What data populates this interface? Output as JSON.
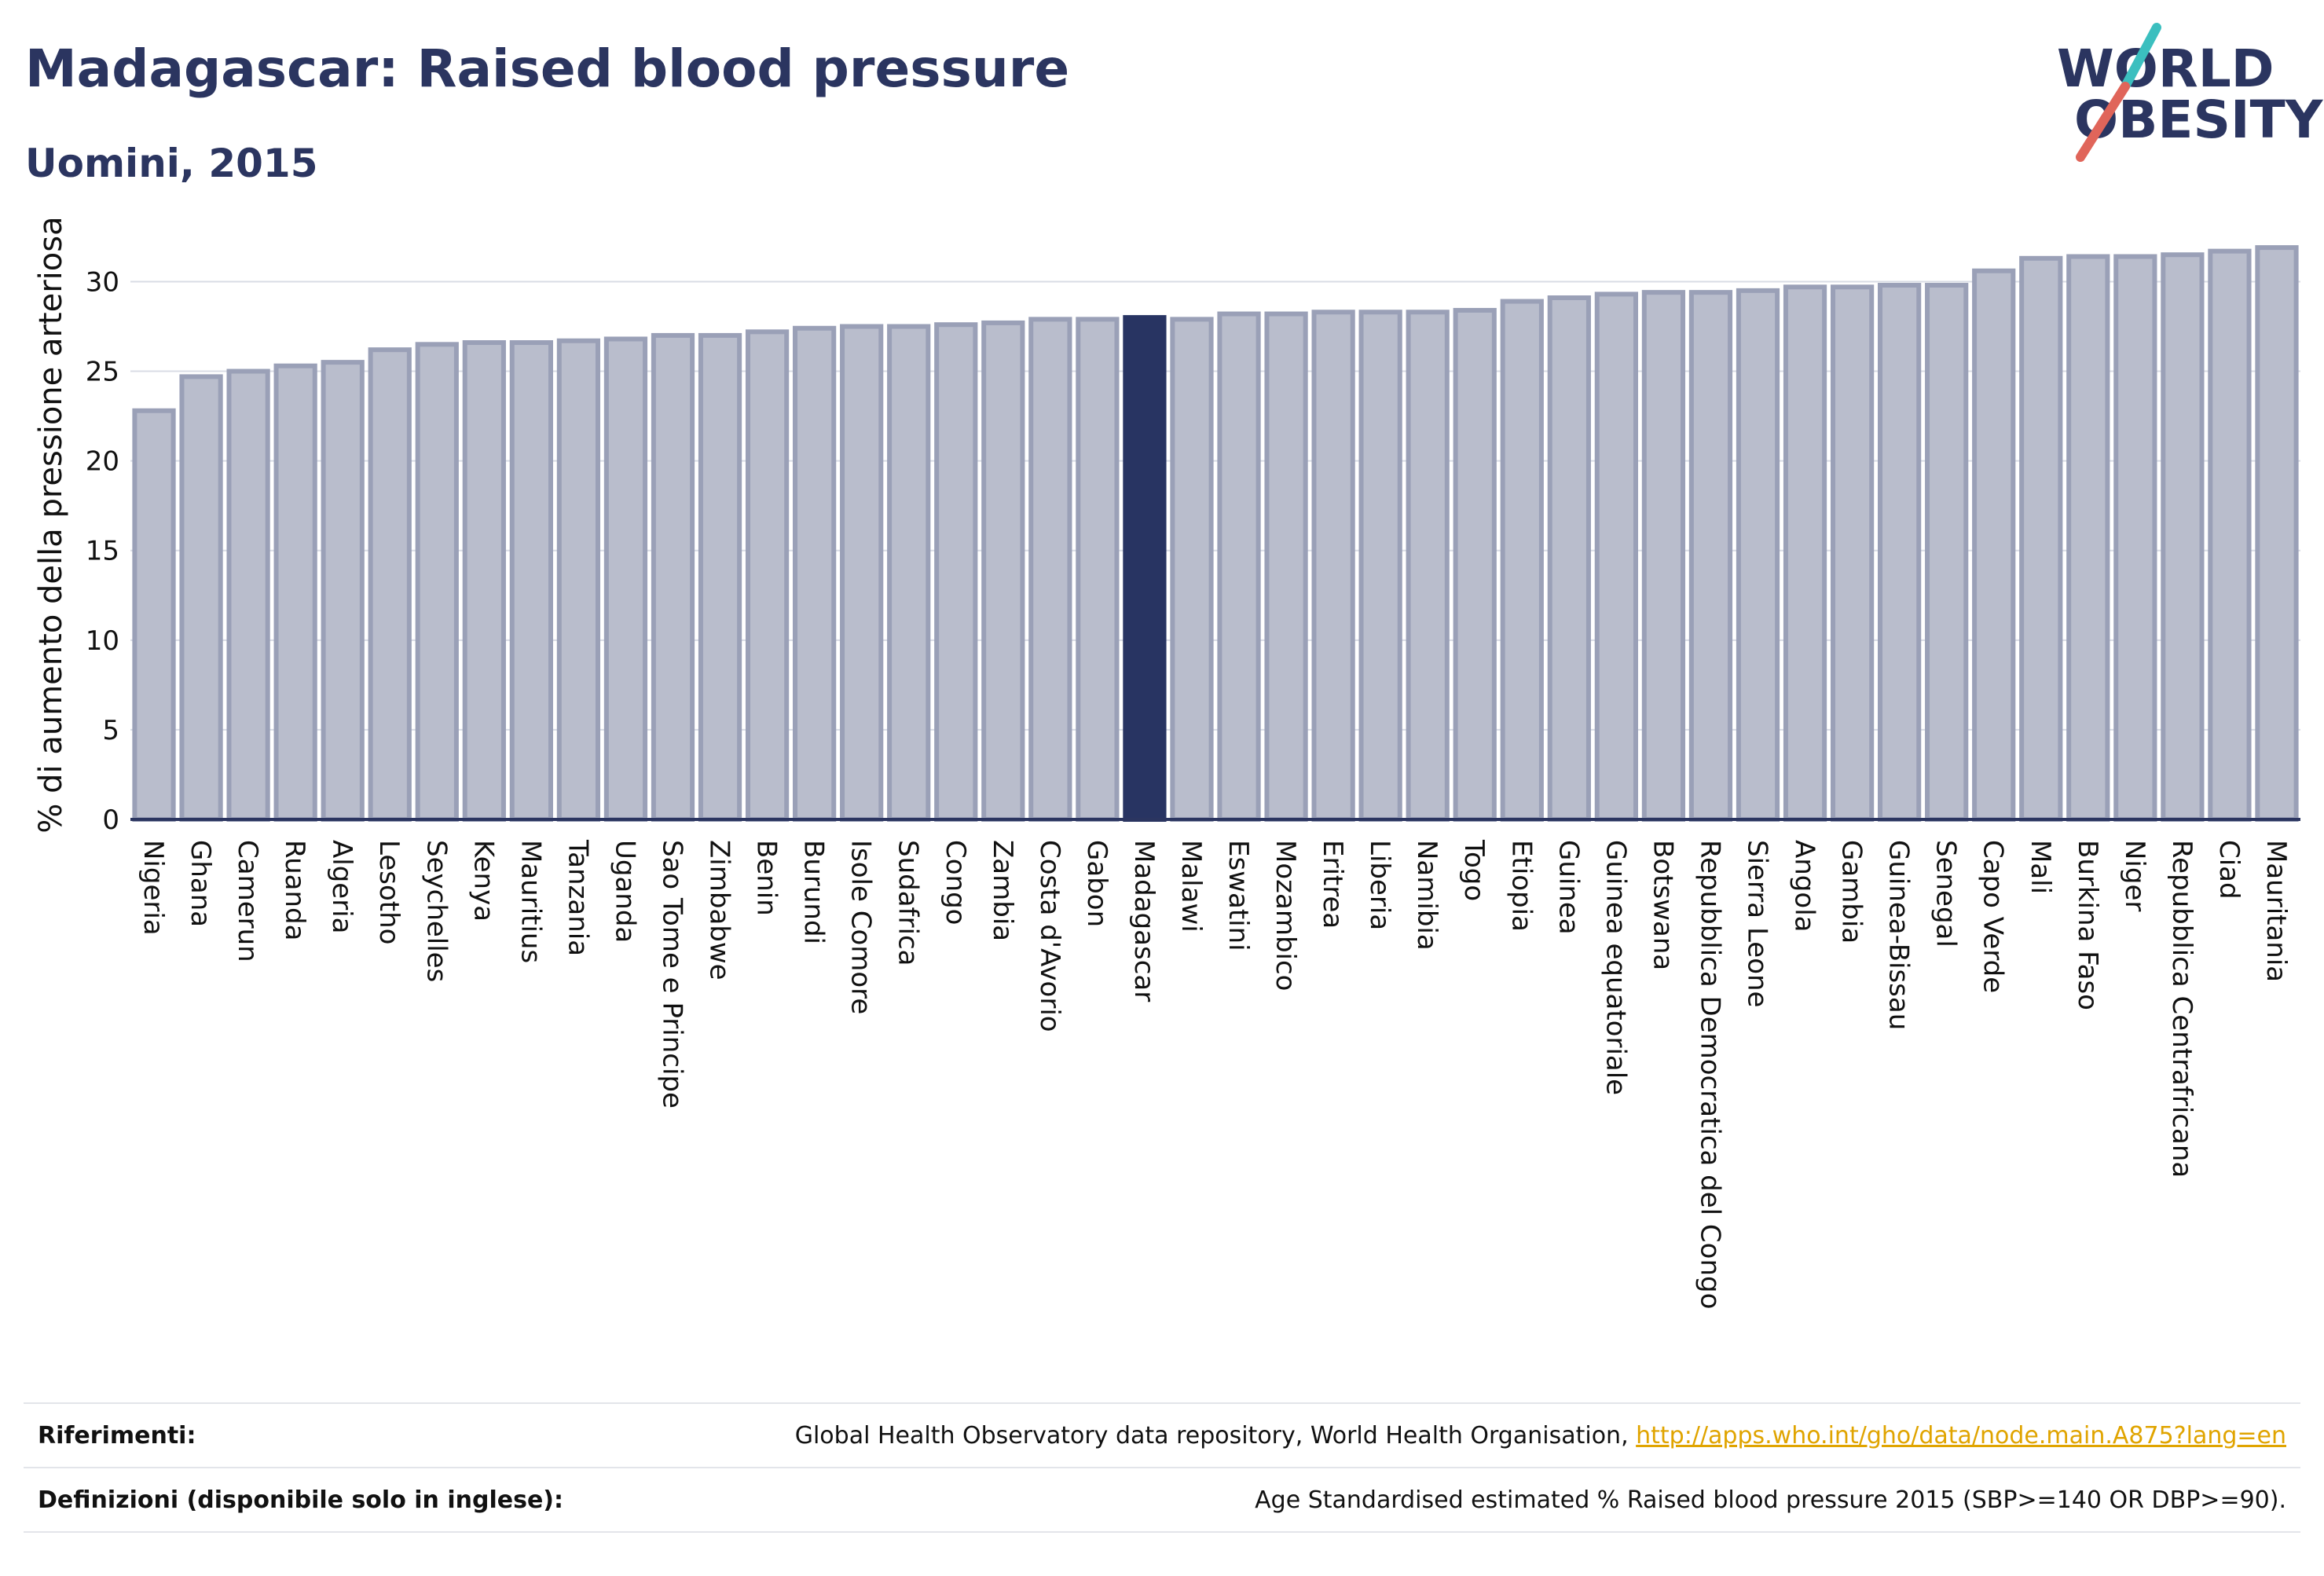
{
  "logo": {
    "line1": "WORLD",
    "line2": "OBESITY"
  },
  "colors": {
    "bar": "#b9bdcc",
    "bar_border": "#9aa0b7",
    "highlight": "#283462",
    "title": "#2b3560",
    "logo_teal": "#3bbfbf",
    "logo_red": "#e0655a",
    "link": "#e0a400"
  },
  "chart_data": {
    "type": "bar",
    "title": "Madagascar: Raised blood pressure",
    "subtitle": "Uomini, 2015",
    "ylabel": "% di aumento della pressione arteriosa",
    "ylim": [
      0,
      33
    ],
    "yticks": [
      0,
      5,
      10,
      15,
      20,
      25,
      30
    ],
    "grid": true,
    "highlight": "Madagascar",
    "categories": [
      "Nigeria",
      "Ghana",
      "Camerun",
      "Ruanda",
      "Algeria",
      "Lesotho",
      "Seychelles",
      "Kenya",
      "Mauritius",
      "Tanzania",
      "Uganda",
      "Sao Tome e Principe",
      "Zimbabwe",
      "Benin",
      "Burundi",
      "Isole Comore",
      "Sudafrica",
      "Congo",
      "Zambia",
      "Costa d'Avorio",
      "Gabon",
      "Madagascar",
      "Malawi",
      "Eswatini",
      "Mozambico",
      "Eritrea",
      "Liberia",
      "Namibia",
      "Togo",
      "Etiopia",
      "Guinea",
      "Guinea equatoriale",
      "Botswana",
      "Repubblica Democratica del Congo",
      "Sierra Leone",
      "Angola",
      "Gambia",
      "Guinea-Bissau",
      "Senegal",
      "Capo Verde",
      "Mali",
      "Burkina Faso",
      "Niger",
      "Repubblica Centrafricana",
      "Ciad",
      "Mauritania"
    ],
    "values": [
      22.8,
      24.7,
      25.0,
      25.3,
      25.5,
      26.2,
      26.5,
      26.6,
      26.6,
      26.7,
      26.8,
      27.0,
      27.0,
      27.2,
      27.4,
      27.5,
      27.5,
      27.6,
      27.7,
      27.9,
      27.9,
      28.0,
      27.9,
      28.2,
      28.2,
      28.3,
      28.3,
      28.3,
      28.4,
      28.9,
      29.1,
      29.3,
      29.4,
      29.4,
      29.5,
      29.7,
      29.7,
      29.8,
      29.8,
      30.6,
      31.3,
      31.4,
      31.4,
      31.5,
      31.7,
      31.9
    ]
  },
  "footer": {
    "references_label": "Riferimenti:",
    "references_text": "Global Health Observatory data repository, World Health Organisation, ",
    "references_link": "http://apps.who.int/gho/data/node.main.A875?lang=en",
    "definitions_label": "Definizioni (disponibile solo in inglese):",
    "definitions_text": "Age Standardised estimated % Raised blood pressure 2015 (SBP>=140 OR DBP>=90)."
  }
}
